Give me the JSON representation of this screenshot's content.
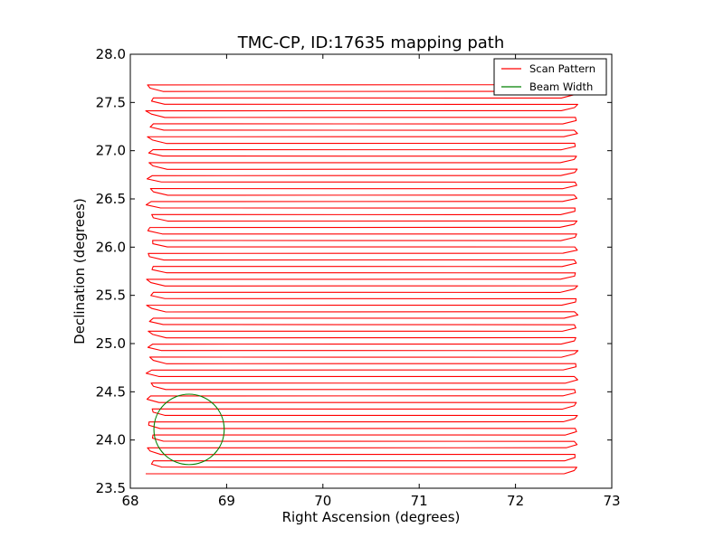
{
  "chart_data": {
    "type": "line",
    "title": "TMC-CP, ID:17635 mapping path",
    "xlabel": "Right Ascension (degrees)",
    "ylabel": "Declination (degrees)",
    "xlim": [
      68,
      73
    ],
    "ylim": [
      23.5,
      28.0
    ],
    "xticks": [
      68,
      69,
      70,
      71,
      72,
      73
    ],
    "xtick_labels": [
      "68",
      "69",
      "70",
      "71",
      "72",
      "73"
    ],
    "yticks": [
      23.5,
      24.0,
      24.5,
      25.0,
      25.5,
      26.0,
      26.5,
      27.0,
      27.5,
      28.0
    ],
    "ytick_labels": [
      "23.5",
      "24.0",
      "24.5",
      "25.0",
      "25.5",
      "26.0",
      "26.5",
      "27.0",
      "27.5",
      "28.0"
    ],
    "grid": false,
    "legend_position": "top-right",
    "series": [
      {
        "name": "Scan Pattern",
        "color": "#ff0000",
        "scan_rows": {
          "dec_start": 23.65,
          "dec_end": 27.72,
          "dec_step": 0.0672,
          "ra_min": 68.16,
          "ra_max": 72.65,
          "turn_width_ra": 0.15,
          "count": 61
        }
      },
      {
        "name": "Beam Width",
        "color": "#008000",
        "circle": {
          "center_ra": 68.61,
          "center_dec": 24.11,
          "radius_deg": 0.365
        }
      }
    ]
  }
}
